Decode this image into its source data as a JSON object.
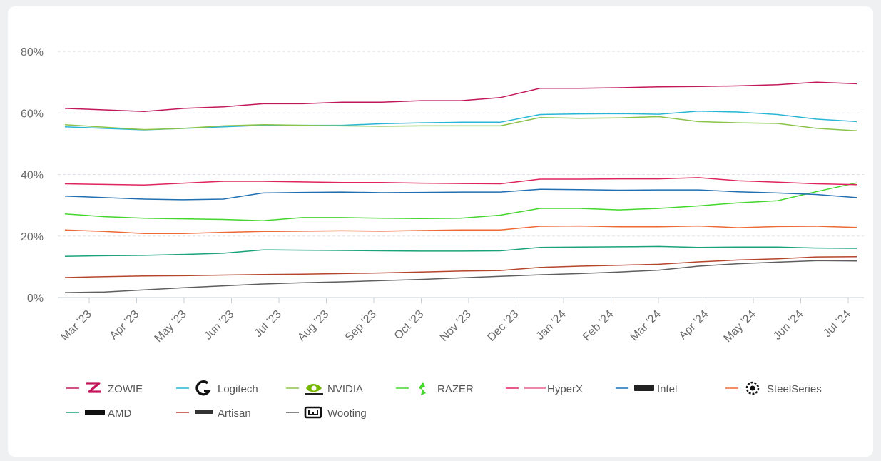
{
  "chart_data": {
    "type": "line",
    "y_ticks": [
      "0%",
      "20%",
      "40%",
      "60%",
      "80%"
    ],
    "ylim": [
      0,
      90
    ],
    "x_tick_labels": [
      "Mar '23",
      "Apr '23",
      "May '23",
      "Jun '23",
      "Jul '23",
      "Aug '23",
      "Sep '23",
      "Oct '23",
      "Nov '23",
      "Dec '23",
      "Jan '24",
      "Feb '24",
      "Mar '24",
      "Apr '24",
      "May '24",
      "Jun '24",
      "Jul '24"
    ],
    "x_points": [
      "Feb '23",
      "Mar '23",
      "Apr '23",
      "Apr '23",
      "May '23",
      "Jun '23",
      "Jul '23",
      "Aug '23",
      "Sep '23",
      "Oct '23",
      "Nov '23",
      "Nov '23",
      "Dec '23",
      "Jan '24",
      "Feb '24",
      "Feb '24",
      "Mar '24",
      "Apr '24",
      "May '24",
      "Jun '24",
      "Jul '24"
    ],
    "grid": true,
    "legend_position": "bottom",
    "series": [
      {
        "name": "ZOWIE",
        "color": "#c2185b",
        "icon": "zowie-logo",
        "values": [
          61.5,
          61,
          60.5,
          61.5,
          62,
          63,
          63,
          63.5,
          63.5,
          64,
          64,
          65,
          68,
          68,
          68.2,
          68.5,
          68.6,
          68.8,
          69.2,
          70,
          69.5
        ]
      },
      {
        "name": "Logitech",
        "color": "#29b6d6",
        "icon": "logitech-logo",
        "values": [
          55.5,
          55,
          54.5,
          55,
          55.5,
          56,
          56,
          56,
          56.5,
          56.8,
          57,
          57,
          59.5,
          59.7,
          59.8,
          59.6,
          60.6,
          60.3,
          59.5,
          58,
          57.2
        ]
      },
      {
        "name": "NVIDIA",
        "color": "#8bc34a",
        "icon": "nvidia-logo",
        "values": [
          56.2,
          55.4,
          54.6,
          55,
          55.8,
          56.2,
          56,
          55.8,
          55.7,
          55.8,
          55.8,
          55.8,
          58.5,
          58.3,
          58.4,
          58.8,
          57.2,
          56.8,
          56.6,
          55,
          54.2
        ]
      },
      {
        "name": "RAZER",
        "color": "#44d62c",
        "icon": "razer-logo",
        "values": [
          27.2,
          26.3,
          25.8,
          25.6,
          25.4,
          25,
          26,
          26,
          25.8,
          25.7,
          25.8,
          26.8,
          29,
          29,
          28.5,
          29,
          29.8,
          30.8,
          31.5,
          34.5,
          37.3
        ]
      },
      {
        "name": "HyperX",
        "color": "#e0245e",
        "icon": "hyperx-logo",
        "values": [
          37,
          36.8,
          36.6,
          37.2,
          37.8,
          37.8,
          37.6,
          37.4,
          37.4,
          37.2,
          37.1,
          37,
          38.5,
          38.5,
          38.6,
          38.6,
          39,
          38,
          37.5,
          37,
          36.7
        ]
      },
      {
        "name": "Intel",
        "color": "#1f6fb2",
        "icon": "intel-logo",
        "values": [
          33,
          32.5,
          32,
          31.8,
          32,
          34,
          34.2,
          34.3,
          34.1,
          34.2,
          34.3,
          34.3,
          35.2,
          35.1,
          34.9,
          35,
          35,
          34.4,
          34,
          33.5,
          32.5
        ]
      },
      {
        "name": "SteelSeries",
        "color": "#ee6a34",
        "icon": "steelseries-logo",
        "values": [
          22,
          21.5,
          20.8,
          20.8,
          21.2,
          21.5,
          21.6,
          21.7,
          21.6,
          21.8,
          22,
          22,
          23.2,
          23.3,
          23,
          23,
          23.3,
          22.7,
          23.1,
          23.2,
          22.8
        ]
      },
      {
        "name": "AMD",
        "color": "#1aa37a",
        "icon": "amd-logo",
        "values": [
          13.4,
          13.6,
          13.7,
          14,
          14.4,
          15.5,
          15.4,
          15.3,
          15.2,
          15.1,
          15.1,
          15.2,
          16.3,
          16.4,
          16.5,
          16.6,
          16.3,
          16.4,
          16.4,
          16.1,
          16
        ]
      },
      {
        "name": "Artisan",
        "color": "#b5452b",
        "icon": "artisan-logo",
        "values": [
          6.5,
          6.8,
          7,
          7.1,
          7.3,
          7.5,
          7.6,
          7.8,
          8,
          8.3,
          8.6,
          8.8,
          9.8,
          10.2,
          10.5,
          10.8,
          11.6,
          12.2,
          12.6,
          13.2,
          13.3
        ]
      },
      {
        "name": "Wooting",
        "color": "#5f5f5f",
        "icon": "wooting-logo",
        "values": [
          1.6,
          1.8,
          2.5,
          3.2,
          3.8,
          4.4,
          4.8,
          5.1,
          5.5,
          5.9,
          6.4,
          6.9,
          7.4,
          7.8,
          8.3,
          8.9,
          10.2,
          11,
          11.5,
          12,
          11.9
        ]
      }
    ]
  }
}
